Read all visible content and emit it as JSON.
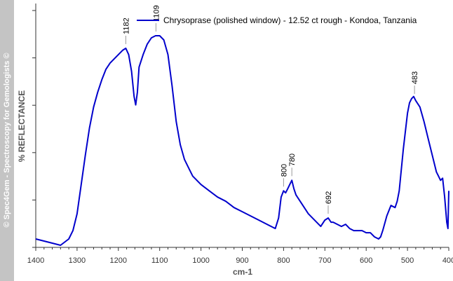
{
  "watermark": "© Spec4Gem - Spectroscopy for Gemologists ©",
  "colors": {
    "series": "#0000cc",
    "axis": "#333333",
    "band": "#c4c4c4"
  },
  "chart_data": {
    "type": "line",
    "xlabel": "cm-1",
    "ylabel": "% REFLECTANCE",
    "xlim": [
      1400,
      400
    ],
    "ylim": [
      0,
      1
    ],
    "x_reversed": true,
    "grid": false,
    "legend_position": "top-right",
    "xticks": [
      "1400",
      "1300",
      "1200",
      "1100",
      "1000",
      "900",
      "800",
      "700",
      "600",
      "500",
      "400"
    ],
    "series": [
      {
        "name": "Chrysoprase (polished window) - 12.52 ct rough - Kondoa, Tanzania",
        "x": [
          1400,
          1380,
          1360,
          1340,
          1320,
          1310,
          1300,
          1290,
          1280,
          1270,
          1260,
          1250,
          1240,
          1230,
          1220,
          1210,
          1200,
          1190,
          1182,
          1175,
          1168,
          1162,
          1158,
          1154,
          1150,
          1140,
          1130,
          1120,
          1110,
          1100,
          1090,
          1080,
          1070,
          1060,
          1050,
          1040,
          1030,
          1020,
          1000,
          980,
          960,
          940,
          920,
          900,
          880,
          860,
          840,
          820,
          812,
          806,
          800,
          795,
          790,
          785,
          780,
          775,
          770,
          760,
          750,
          740,
          730,
          720,
          710,
          700,
          692,
          685,
          680,
          670,
          660,
          650,
          640,
          630,
          620,
          610,
          600,
          590,
          580,
          570,
          565,
          560,
          550,
          540,
          530,
          525,
          520,
          510,
          500,
          495,
          490,
          485,
          480,
          470,
          460,
          450,
          440,
          430,
          425,
          420,
          415,
          410,
          405,
          402,
          400
        ],
        "y": [
          0.02,
          0.01,
          0.0,
          -0.01,
          0.02,
          0.06,
          0.14,
          0.28,
          0.42,
          0.55,
          0.65,
          0.72,
          0.78,
          0.83,
          0.86,
          0.88,
          0.9,
          0.92,
          0.93,
          0.9,
          0.82,
          0.7,
          0.66,
          0.72,
          0.84,
          0.9,
          0.95,
          0.98,
          0.99,
          0.99,
          0.97,
          0.9,
          0.75,
          0.58,
          0.47,
          0.4,
          0.36,
          0.32,
          0.28,
          0.25,
          0.22,
          0.2,
          0.17,
          0.15,
          0.13,
          0.11,
          0.09,
          0.07,
          0.12,
          0.22,
          0.25,
          0.24,
          0.26,
          0.28,
          0.3,
          0.26,
          0.23,
          0.2,
          0.17,
          0.14,
          0.12,
          0.1,
          0.08,
          0.11,
          0.12,
          0.1,
          0.1,
          0.09,
          0.08,
          0.09,
          0.07,
          0.06,
          0.06,
          0.06,
          0.05,
          0.05,
          0.03,
          0.02,
          0.03,
          0.06,
          0.13,
          0.18,
          0.17,
          0.2,
          0.25,
          0.45,
          0.62,
          0.67,
          0.69,
          0.7,
          0.68,
          0.65,
          0.58,
          0.5,
          0.42,
          0.34,
          0.32,
          0.3,
          0.31,
          0.22,
          0.1,
          0.07,
          0.25
        ]
      }
    ],
    "annotations": [
      {
        "label": "1182",
        "x": 1182
      },
      {
        "label": "1109",
        "x": 1109
      },
      {
        "label": "800",
        "x": 800
      },
      {
        "label": "780",
        "x": 780
      },
      {
        "label": "692",
        "x": 692
      },
      {
        "label": "483",
        "x": 483
      }
    ]
  }
}
